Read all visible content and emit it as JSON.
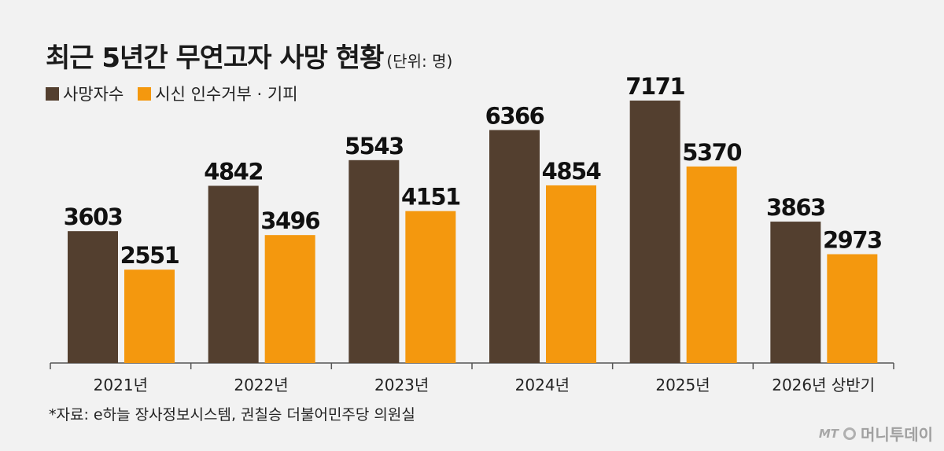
{
  "title": "최근 5년간 무연고자 사망 현황",
  "unit_label": "(단위: 명)",
  "colors": {
    "deaths": "#533f2f",
    "refusal": "#f4980e",
    "background": "#f2f2f2"
  },
  "legend": [
    {
      "label": "사망자수",
      "color": "#533f2f"
    },
    {
      "label": "시신 인수거부 · 기피",
      "color": "#f4980e"
    }
  ],
  "chart_data": {
    "type": "bar",
    "categories": [
      "2021년",
      "2022년",
      "2023년",
      "2024년",
      "2025년",
      "2026년 상반기"
    ],
    "series": [
      {
        "name": "사망자수",
        "values": [
          3603,
          4842,
          5543,
          6366,
          7171,
          3863
        ]
      },
      {
        "name": "시신 인수거부 · 기피",
        "values": [
          2551,
          3496,
          4151,
          4854,
          5370,
          2973
        ]
      }
    ],
    "ylim": [
      0,
      7171
    ],
    "grid": false,
    "legend_position": "top-left"
  },
  "source": "*자료: e하늘 장사정보시스템, 권칠승 더불어민주당 의원실",
  "watermark": {
    "mt": "MT",
    "text": "머니투데이"
  }
}
